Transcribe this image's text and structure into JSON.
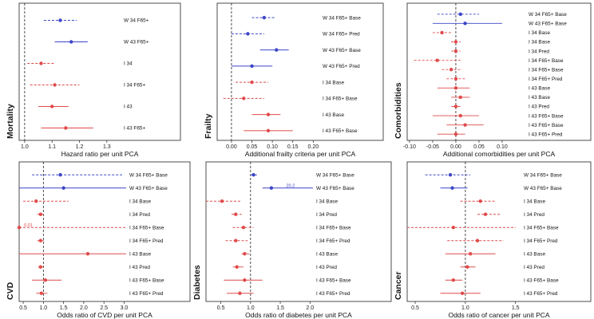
{
  "colors": {
    "W": "#3b45c9",
    "I": "#e04a4a",
    "frame": "#222222"
  },
  "line_styles": {
    "Base": "solid",
    "Pred": "dashed",
    "F65+": "dashed"
  },
  "chart_data": [
    {
      "type": "forest",
      "title": "Mortality",
      "xlabel": "Hazard ratio per unit PCA",
      "xlim": [
        0.98,
        1.35
      ],
      "ticks": [
        1.0,
        1.1,
        1.2,
        1.3
      ],
      "tick_labels": [
        "1.0",
        "1.1",
        "1.2",
        "1.3"
      ],
      "ref": 1.0,
      "rows": [
        {
          "label": "W 34 F65+",
          "group": "W",
          "est": 1.13,
          "lo": 1.07,
          "hi": 1.19,
          "style": "dashed"
        },
        {
          "label": "W 43 F65+",
          "group": "W",
          "est": 1.17,
          "lo": 1.11,
          "hi": 1.23,
          "style": "solid"
        },
        {
          "label": "I 34",
          "group": "I",
          "est": 1.06,
          "lo": 1.01,
          "hi": 1.11,
          "style": "dashed"
        },
        {
          "label": "I 34 F65+",
          "group": "I",
          "est": 1.11,
          "lo": 1.02,
          "hi": 1.2,
          "style": "dashed"
        },
        {
          "label": "I 43",
          "group": "I",
          "est": 1.1,
          "lo": 1.05,
          "hi": 1.16,
          "style": "solid"
        },
        {
          "label": "I 43 F65+",
          "group": "I",
          "est": 1.15,
          "lo": 1.06,
          "hi": 1.25,
          "style": "solid"
        }
      ]
    },
    {
      "type": "forest",
      "title": "Frailty",
      "xlabel": "Additional frailty criteria per unit PCA",
      "xlim": [
        -0.035,
        0.215
      ],
      "ticks": [
        0.0,
        0.05,
        0.1,
        0.15,
        0.2
      ],
      "tick_labels": [
        "0.00",
        "0.05",
        "0.10",
        "0.15",
        "0.20"
      ],
      "ref": 0.0,
      "rows": [
        {
          "label": "W 34 F65+ Base",
          "group": "W",
          "est": 0.08,
          "lo": 0.05,
          "hi": 0.105,
          "style": "dashed"
        },
        {
          "label": "W 34 F65+ Pred",
          "group": "W",
          "est": 0.04,
          "lo": 0.0,
          "hi": 0.08,
          "style": "dashed"
        },
        {
          "label": "W 43 F65+ Base",
          "group": "W",
          "est": 0.11,
          "lo": 0.07,
          "hi": 0.14,
          "style": "solid"
        },
        {
          "label": "W 43 F65+ Pred",
          "group": "W",
          "est": 0.05,
          "lo": 0.0,
          "hi": 0.1,
          "style": "solid"
        },
        {
          "label": "I 34 Base",
          "group": "I",
          "est": 0.05,
          "lo": 0.01,
          "hi": 0.09,
          "style": "dashed"
        },
        {
          "label": "I 34 F65+ Base",
          "group": "I",
          "est": 0.03,
          "lo": -0.02,
          "hi": 0.08,
          "style": "dashed"
        },
        {
          "label": "I 43 Base",
          "group": "I",
          "est": 0.09,
          "lo": 0.05,
          "hi": 0.12,
          "style": "solid"
        },
        {
          "label": "I 43 F65+ Base",
          "group": "I",
          "est": 0.09,
          "lo": 0.03,
          "hi": 0.15,
          "style": "solid"
        }
      ]
    },
    {
      "type": "forest",
      "title": "Comorbidities",
      "xlabel": "Additional comorbidities per unit PCA",
      "xlim": [
        -0.105,
        0.15
      ],
      "ticks": [
        -0.1,
        -0.05,
        0.0,
        0.05,
        0.1
      ],
      "tick_labels": [
        "-0.10",
        "-0.05",
        "0.00",
        "0.05",
        "0.10"
      ],
      "ref": 0.0,
      "rows": [
        {
          "label": "W 34 F65+ Base",
          "group": "W",
          "est": 0.01,
          "lo": -0.04,
          "hi": 0.05,
          "style": "dashed"
        },
        {
          "label": "W 43 F65+ Base",
          "group": "W",
          "est": 0.02,
          "lo": -0.05,
          "hi": 0.1,
          "style": "solid"
        },
        {
          "label": "I 34 Base",
          "group": "I",
          "est": -0.03,
          "lo": -0.05,
          "hi": -0.01,
          "style": "dashed"
        },
        {
          "label": "I 34 Base",
          "group": "I",
          "est": 0.0,
          "lo": -0.01,
          "hi": 0.01,
          "style": "dashed"
        },
        {
          "label": "I 34 Pred",
          "group": "I",
          "est": 0.0,
          "lo": -0.01,
          "hi": 0.01,
          "style": "dashed"
        },
        {
          "label": "I 34 F65+ Base",
          "group": "I",
          "est": -0.04,
          "lo": -0.09,
          "hi": 0.01,
          "style": "dashed"
        },
        {
          "label": "I 34 F65+ Base",
          "group": "I",
          "est": -0.01,
          "lo": -0.03,
          "hi": 0.01,
          "style": "dashed"
        },
        {
          "label": "I 34 F65+ Pred",
          "group": "I",
          "est": 0.0,
          "lo": -0.02,
          "hi": 0.02,
          "style": "dashed"
        },
        {
          "label": "I 43 Base",
          "group": "I",
          "est": 0.0,
          "lo": -0.04,
          "hi": 0.03,
          "style": "solid"
        },
        {
          "label": "I 43 Base",
          "group": "I",
          "est": 0.01,
          "lo": -0.01,
          "hi": 0.03,
          "style": "solid"
        },
        {
          "label": "I 43 Pred",
          "group": "I",
          "est": 0.0,
          "lo": -0.01,
          "hi": 0.01,
          "style": "solid"
        },
        {
          "label": "I 43 F65+ Base",
          "group": "I",
          "est": 0.01,
          "lo": -0.05,
          "hi": 0.05,
          "style": "solid"
        },
        {
          "label": "I 43 F65+ Base",
          "group": "I",
          "est": 0.02,
          "lo": -0.02,
          "hi": 0.06,
          "style": "solid"
        },
        {
          "label": "I 43 F65+ Pred",
          "group": "I",
          "est": 0.0,
          "lo": -0.04,
          "hi": 0.02,
          "style": "solid"
        }
      ]
    },
    {
      "type": "forest",
      "title": "CVD",
      "xlabel": "Odds ratio of CVD per unit PCA",
      "xlim": [
        0.4,
        3.05
      ],
      "ticks": [
        0.5,
        1.0,
        1.5,
        2.0,
        2.5,
        3.0
      ],
      "tick_labels": [
        "0.5",
        "1.0",
        "1.5",
        "2.0",
        "2.5",
        "3.0"
      ],
      "ref": 1.0,
      "rows": [
        {
          "label": "W 34 F65+ Base",
          "group": "W",
          "est": 1.42,
          "lo": 0.72,
          "hi": 2.95,
          "style": "dashed"
        },
        {
          "label": "W 43 F65+ Base",
          "group": "W",
          "est": 1.5,
          "lo": 0.4,
          "hi": 3.05,
          "style": "solid"
        },
        {
          "label": "I 34 Base",
          "group": "I",
          "est": 0.82,
          "lo": 0.5,
          "hi": 1.62,
          "style": "dashed"
        },
        {
          "label": "I 34 Pred",
          "group": "I",
          "est": 0.93,
          "lo": 0.85,
          "hi": 1.02,
          "style": "dashed"
        },
        {
          "label": "I 34 F65+ Base",
          "group": "I",
          "est": 0.4,
          "lo": 0.4,
          "hi": 3.05,
          "style": "dashed",
          "arrow_value": "0.01"
        },
        {
          "label": "I 34 F65+ Pred",
          "group": "I",
          "est": 0.93,
          "lo": 0.85,
          "hi": 1.02,
          "style": "dashed"
        },
        {
          "label": "I 43 Base",
          "group": "I",
          "est": 2.1,
          "lo": 0.4,
          "hi": 3.05,
          "style": "solid"
        },
        {
          "label": "I 43 Pred",
          "group": "I",
          "est": 0.93,
          "lo": 0.87,
          "hi": 1.01,
          "style": "solid"
        },
        {
          "label": "I 43 F65+ Base",
          "group": "I",
          "est": 1.05,
          "lo": 0.72,
          "hi": 1.45,
          "style": "solid"
        },
        {
          "label": "I 43 F65+ Pred",
          "group": "I",
          "est": 0.95,
          "lo": 0.82,
          "hi": 1.1,
          "style": "solid"
        }
      ]
    },
    {
      "type": "forest",
      "title": "Diabetes",
      "xlabel": "Odds ratio of diabetes per unit PCA",
      "xlim": [
        0.25,
        2.05
      ],
      "ticks": [
        0.5,
        1.0,
        1.5,
        2.0
      ],
      "tick_labels": [
        "0.5",
        "1.0",
        "1.5",
        "2.0"
      ],
      "ref": 1.0,
      "rows": [
        {
          "label": "W 34 F65+ Base",
          "group": "W",
          "est": 1.05,
          "lo": 1.0,
          "hi": 1.12,
          "style": "dashed"
        },
        {
          "label": "W 43 F65+ Base",
          "group": "W",
          "est": 1.35,
          "lo": 1.2,
          "hi": 2.05,
          "style": "solid",
          "arrow_value": "20.2"
        },
        {
          "label": "I 34 Base",
          "group": "I",
          "est": 0.52,
          "lo": 0.25,
          "hi": 0.85,
          "style": "dashed"
        },
        {
          "label": "I 34 Pred",
          "group": "I",
          "est": 0.75,
          "lo": 0.68,
          "hi": 0.85,
          "style": "dashed"
        },
        {
          "label": "I 34 F65+ Base",
          "group": "I",
          "est": 0.88,
          "lo": 0.7,
          "hi": 1.05,
          "style": "dashed"
        },
        {
          "label": "I 34 F65+ Pred",
          "group": "I",
          "est": 0.75,
          "lo": 0.58,
          "hi": 0.95,
          "style": "dashed"
        },
        {
          "label": "I 43 Base",
          "group": "I",
          "est": 0.9,
          "lo": 0.85,
          "hi": 0.98,
          "style": "solid"
        },
        {
          "label": "I 43 Pred",
          "group": "I",
          "est": 0.77,
          "lo": 0.7,
          "hi": 0.88,
          "style": "solid"
        },
        {
          "label": "I 43 F65+ Base",
          "group": "I",
          "est": 0.9,
          "lo": 0.55,
          "hi": 1.2,
          "style": "solid"
        },
        {
          "label": "I 43 F65+ Pred",
          "group": "I",
          "est": 0.82,
          "lo": 0.6,
          "hi": 1.05,
          "style": "solid"
        }
      ]
    },
    {
      "type": "forest",
      "title": "Cancer",
      "xlabel": "Odds ratio of cancer per unit PCA",
      "xlim": [
        0.42,
        1.55
      ],
      "ticks": [
        0.5,
        1.0,
        1.5
      ],
      "tick_labels": [
        "0.5",
        "1.0",
        "1.5"
      ],
      "ref": 1.0,
      "rows": [
        {
          "label": "W 34 F65+ Base",
          "group": "W",
          "est": 0.85,
          "lo": 0.6,
          "hi": 1.05,
          "style": "dashed"
        },
        {
          "label": "W 43 F65+ Base",
          "group": "W",
          "est": 0.87,
          "lo": 0.75,
          "hi": 1.02,
          "style": "solid"
        },
        {
          "label": "I 34 Base",
          "group": "I",
          "est": 1.15,
          "lo": 0.95,
          "hi": 1.3,
          "style": "dashed"
        },
        {
          "label": "I 34 Pred",
          "group": "I",
          "est": 1.2,
          "lo": 1.12,
          "hi": 1.35,
          "style": "dashed"
        },
        {
          "label": "I 34 F65+ Base",
          "group": "I",
          "est": 0.88,
          "lo": 0.42,
          "hi": 1.5,
          "style": "dashed"
        },
        {
          "label": "I 34 F65+ Pred",
          "group": "I",
          "est": 1.12,
          "lo": 0.82,
          "hi": 1.38,
          "style": "dashed"
        },
        {
          "label": "I 43 Base",
          "group": "I",
          "est": 1.05,
          "lo": 0.8,
          "hi": 1.3,
          "style": "solid"
        },
        {
          "label": "I 43 Pred",
          "group": "I",
          "est": 1.02,
          "lo": 0.95,
          "hi": 1.1,
          "style": "solid"
        },
        {
          "label": "I 43 F65+ Base",
          "group": "I",
          "est": 0.88,
          "lo": 0.8,
          "hi": 0.97,
          "style": "solid"
        },
        {
          "label": "I 43 F65+ Pred",
          "group": "I",
          "est": 0.97,
          "lo": 0.75,
          "hi": 1.15,
          "style": "solid"
        }
      ]
    }
  ]
}
